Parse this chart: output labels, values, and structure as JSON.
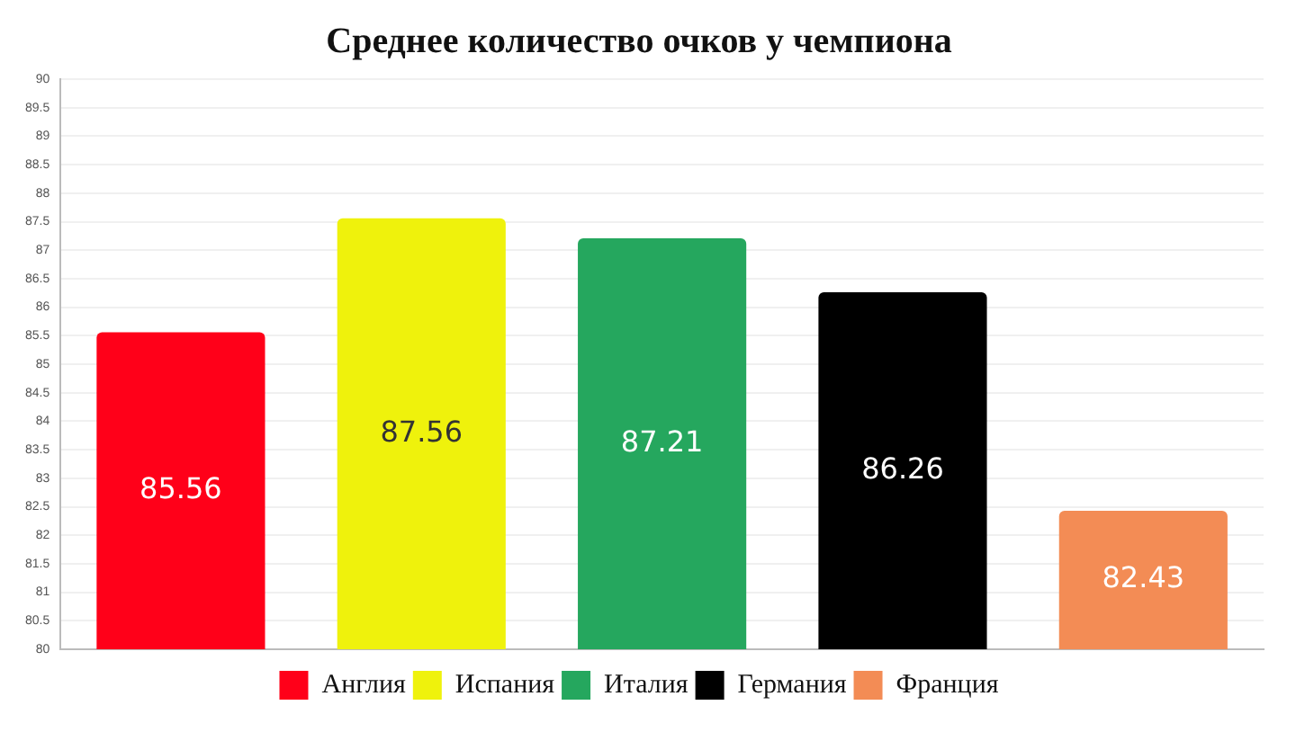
{
  "chart_data": {
    "type": "bar",
    "title": "Среднее количество очков у чемпиона",
    "categories": [
      null,
      null,
      null,
      null,
      null
    ],
    "series": [
      {
        "name": "Англия",
        "color": "#ff0019",
        "values": [
          85.56,
          null,
          null,
          null,
          null
        ]
      },
      {
        "name": "Испания",
        "color": "#eff20c",
        "values": [
          null,
          87.56,
          null,
          null,
          null
        ]
      },
      {
        "name": "Италия",
        "color": "#25a75e",
        "values": [
          null,
          null,
          87.21,
          null,
          null
        ]
      },
      {
        "name": "Германия",
        "color": "#000000",
        "values": [
          null,
          null,
          null,
          86.26,
          null
        ]
      },
      {
        "name": "Франция",
        "color": "#f38c55",
        "values": [
          null,
          null,
          null,
          null,
          82.43
        ]
      }
    ],
    "ylim": [
      80,
      90
    ],
    "yticks": [
      80,
      80.5,
      81,
      81.5,
      82,
      82.5,
      83,
      83.5,
      84,
      84.5,
      85,
      85.5,
      86,
      86.5,
      87,
      87.5,
      88,
      88.5,
      89,
      89.5,
      90
    ],
    "grid": "y",
    "legend": "bottom",
    "data_labels": true
  }
}
